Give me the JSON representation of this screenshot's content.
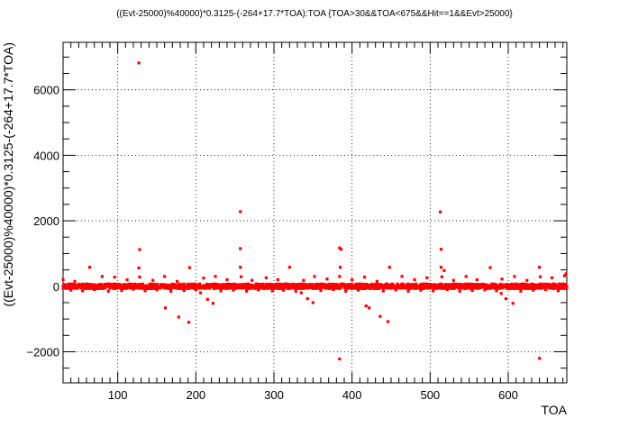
{
  "chart_data": {
    "type": "scatter",
    "title": "((Evt-25000)%40000)*0.3125-(-264+17.7*TOA):TOA {TOA>30&&TOA<675&&Hit==1&&Evt>25000}",
    "xlabel": "TOA",
    "ylabel": "((Evt-25000)%40000)*0.3125-(-264+17.7*TOA)",
    "xlim": [
      30,
      675
    ],
    "ylim": [
      -2950,
      7450
    ],
    "x_ticks": [
      100,
      200,
      300,
      400,
      500,
      600
    ],
    "y_ticks": [
      -2000,
      0,
      2000,
      4000,
      6000
    ],
    "x_tick_labels": [
      "100",
      "200",
      "300",
      "400",
      "500",
      "600"
    ],
    "y_tick_labels": [
      "−2000",
      "0",
      "2000",
      "4000",
      "6000"
    ],
    "grid": true,
    "marker_color": "#ff0000",
    "points": [
      {
        "x": 127,
        "y": 6820
      },
      {
        "x": 128,
        "y": 1120
      },
      {
        "x": 127,
        "y": 560
      },
      {
        "x": 128,
        "y": 280
      },
      {
        "x": 257,
        "y": 2280
      },
      {
        "x": 257,
        "y": 1150
      },
      {
        "x": 257,
        "y": 580
      },
      {
        "x": 258,
        "y": 290
      },
      {
        "x": 513,
        "y": 2270
      },
      {
        "x": 514,
        "y": 1130
      },
      {
        "x": 514,
        "y": 580
      },
      {
        "x": 518,
        "y": 480
      },
      {
        "x": 515,
        "y": 290
      },
      {
        "x": 384,
        "y": 1170
      },
      {
        "x": 386,
        "y": 1130
      },
      {
        "x": 385,
        "y": 580
      },
      {
        "x": 384,
        "y": 300
      },
      {
        "x": 384,
        "y": -2220
      },
      {
        "x": 640,
        "y": -2200
      },
      {
        "x": 640,
        "y": 580
      },
      {
        "x": 641,
        "y": 290
      },
      {
        "x": 64,
        "y": 580
      },
      {
        "x": 192,
        "y": 570
      },
      {
        "x": 320,
        "y": 580
      },
      {
        "x": 448,
        "y": 580
      },
      {
        "x": 577,
        "y": 570
      },
      {
        "x": 672,
        "y": 320
      },
      {
        "x": 674,
        "y": 380
      },
      {
        "x": 161,
        "y": -660
      },
      {
        "x": 178,
        "y": -940
      },
      {
        "x": 191,
        "y": -1100
      },
      {
        "x": 206,
        "y": -200
      },
      {
        "x": 215,
        "y": -400
      },
      {
        "x": 222,
        "y": -520
      },
      {
        "x": 335,
        "y": -200
      },
      {
        "x": 343,
        "y": -380
      },
      {
        "x": 350,
        "y": -500
      },
      {
        "x": 418,
        "y": -600
      },
      {
        "x": 422,
        "y": -660
      },
      {
        "x": 436,
        "y": -920
      },
      {
        "x": 446,
        "y": -1080
      },
      {
        "x": 591,
        "y": -220
      },
      {
        "x": 597,
        "y": -380
      },
      {
        "x": 606,
        "y": -520
      },
      {
        "x": 30,
        "y": 200
      },
      {
        "x": 45,
        "y": 150
      },
      {
        "x": 80,
        "y": 300
      },
      {
        "x": 96,
        "y": 280
      },
      {
        "x": 112,
        "y": 200
      },
      {
        "x": 145,
        "y": 180
      },
      {
        "x": 160,
        "y": 300
      },
      {
        "x": 176,
        "y": 150
      },
      {
        "x": 210,
        "y": 250
      },
      {
        "x": 225,
        "y": 300
      },
      {
        "x": 240,
        "y": 200
      },
      {
        "x": 272,
        "y": 180
      },
      {
        "x": 290,
        "y": 260
      },
      {
        "x": 305,
        "y": 200
      },
      {
        "x": 338,
        "y": 180
      },
      {
        "x": 352,
        "y": 300
      },
      {
        "x": 368,
        "y": 220
      },
      {
        "x": 400,
        "y": 200
      },
      {
        "x": 416,
        "y": 280
      },
      {
        "x": 432,
        "y": 150
      },
      {
        "x": 464,
        "y": 300
      },
      {
        "x": 480,
        "y": 200
      },
      {
        "x": 496,
        "y": 260
      },
      {
        "x": 530,
        "y": 180
      },
      {
        "x": 546,
        "y": 300
      },
      {
        "x": 560,
        "y": 200
      },
      {
        "x": 592,
        "y": 220
      },
      {
        "x": 608,
        "y": 300
      },
      {
        "x": 624,
        "y": 180
      },
      {
        "x": 656,
        "y": 260
      },
      {
        "x": 40,
        "y": -120
      },
      {
        "x": 55,
        "y": -140
      },
      {
        "x": 70,
        "y": -100
      },
      {
        "x": 88,
        "y": -150
      },
      {
        "x": 105,
        "y": -130
      },
      {
        "x": 120,
        "y": -90
      },
      {
        "x": 135,
        "y": -140
      },
      {
        "x": 150,
        "y": -110
      },
      {
        "x": 168,
        "y": -150
      },
      {
        "x": 185,
        "y": -130
      },
      {
        "x": 200,
        "y": -100
      },
      {
        "x": 232,
        "y": -140
      },
      {
        "x": 248,
        "y": -120
      },
      {
        "x": 265,
        "y": -150
      },
      {
        "x": 280,
        "y": -110
      },
      {
        "x": 298,
        "y": -140
      },
      {
        "x": 312,
        "y": -120
      },
      {
        "x": 328,
        "y": -150
      },
      {
        "x": 360,
        "y": -130
      },
      {
        "x": 376,
        "y": -100
      },
      {
        "x": 392,
        "y": -150
      },
      {
        "x": 408,
        "y": -120
      },
      {
        "x": 440,
        "y": -140
      },
      {
        "x": 456,
        "y": -110
      },
      {
        "x": 472,
        "y": -150
      },
      {
        "x": 488,
        "y": -120
      },
      {
        "x": 504,
        "y": -140
      },
      {
        "x": 522,
        "y": -100
      },
      {
        "x": 538,
        "y": -150
      },
      {
        "x": 554,
        "y": -130
      },
      {
        "x": 570,
        "y": -110
      },
      {
        "x": 585,
        "y": -140
      },
      {
        "x": 616,
        "y": -150
      },
      {
        "x": 632,
        "y": -120
      },
      {
        "x": 648,
        "y": -100
      },
      {
        "x": 664,
        "y": -140
      }
    ]
  }
}
